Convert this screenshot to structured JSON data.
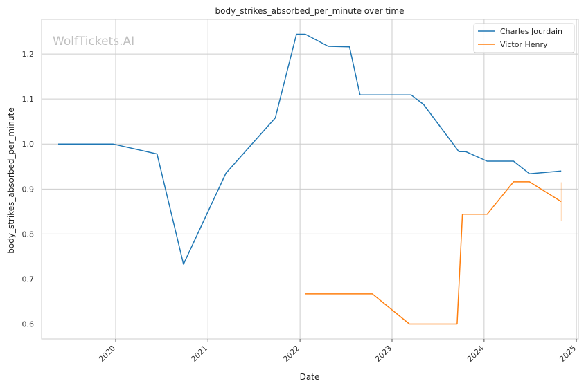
{
  "chart_data": {
    "type": "line",
    "title": "body_strikes_absorbed_per_minute over time",
    "xlabel": "Date",
    "ylabel": "body_strikes_absorbed_per_minute",
    "watermark": "WolfTickets.AI",
    "x_ticks": [
      "2020",
      "2021",
      "2022",
      "2023",
      "2024",
      "2025"
    ],
    "y_ticks": [
      "0.6",
      "0.7",
      "0.8",
      "0.9",
      "1.0",
      "1.1",
      "1.2"
    ],
    "xlim": [
      "2019-03-13",
      "2025-01-09"
    ],
    "ylim": [
      0.567,
      1.277
    ],
    "grid": true,
    "legend_position": "top-right",
    "series": [
      {
        "name": "Charles Jourdain",
        "color": "#1f77b4",
        "points": [
          [
            "2019-05-18",
            1.0
          ],
          [
            "2019-12-21",
            1.0
          ],
          [
            "2020-06-13",
            0.978
          ],
          [
            "2020-09-26",
            0.733
          ],
          [
            "2021-03-13",
            0.935
          ],
          [
            "2021-09-25",
            1.058
          ],
          [
            "2021-12-18",
            1.244
          ],
          [
            "2022-01-22",
            1.244
          ],
          [
            "2022-04-23",
            1.217
          ],
          [
            "2022-07-16",
            1.216
          ],
          [
            "2022-08-27",
            1.109
          ],
          [
            "2023-03-18",
            1.109
          ],
          [
            "2023-05-06",
            1.088
          ],
          [
            "2023-09-23",
            0.983
          ],
          [
            "2023-10-21",
            0.983
          ],
          [
            "2024-01-13",
            0.962
          ],
          [
            "2024-04-27",
            0.962
          ],
          [
            "2024-06-29",
            0.934
          ],
          [
            "2024-11-02",
            0.94
          ]
        ]
      },
      {
        "name": "Victor Henry",
        "color": "#ff7f0e",
        "points": [
          [
            "2022-01-22",
            0.667
          ],
          [
            "2022-10-15",
            0.667
          ],
          [
            "2023-03-11",
            0.6
          ],
          [
            "2023-09-16",
            0.6
          ],
          [
            "2023-10-07",
            0.844
          ],
          [
            "2024-01-13",
            0.844
          ],
          [
            "2024-04-27",
            0.916
          ],
          [
            "2024-06-29",
            0.916
          ],
          [
            "2024-11-02",
            0.872
          ]
        ],
        "error_bar": {
          "x": "2024-11-02",
          "low": 0.829,
          "high": 0.915
        }
      }
    ]
  }
}
